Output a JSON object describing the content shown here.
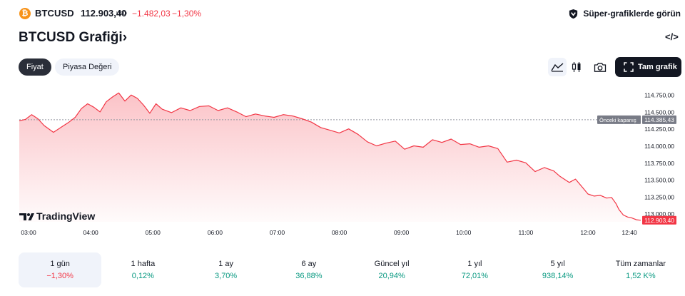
{
  "header": {
    "coin_glyph": "₿",
    "symbol": "BTCUSD",
    "price": "112.903,40",
    "currency": "USD",
    "change": "−1.482,03",
    "change_percent": "−1,30%",
    "super_charts_label": "Süper-grafiklerde görün"
  },
  "title": {
    "text": "BTCUSD Grafiği",
    "chevron": "›",
    "embed_icon": "</>"
  },
  "tabs": [
    {
      "label": "Fiyat",
      "active": true
    },
    {
      "label": "Piyasa Değeri",
      "active": false
    }
  ],
  "toolbar": {
    "line_icon": "line-chart-icon",
    "candle_icon": "candlestick-icon",
    "camera_icon": "camera-icon",
    "full_chart_label": "Tam grafik"
  },
  "chart_data": {
    "type": "area",
    "x_tick_labels": [
      "03:00",
      "04:00",
      "05:00",
      "06:00",
      "07:00",
      "08:00",
      "09:00",
      "10:00",
      "11:00",
      "12:00",
      "12:40"
    ],
    "y_tick_labels": [
      "114.750,00",
      "114.500,00",
      "114.250,00",
      "114.000,00",
      "113.750,00",
      "113.500,00",
      "113.250,00",
      "113.000,00"
    ],
    "y_ticks": [
      114750,
      114500,
      114250,
      114000,
      113750,
      113500,
      113250,
      113000
    ],
    "ylim": [
      112880,
      114920
    ],
    "x_start_hour": 2.85,
    "x_end_hour": 12.85,
    "prev_close_label": "Önceki kapanış",
    "prev_close_value": "114.385,43",
    "prev_close": 114385.43,
    "last_price_label": "112.903,40",
    "last_price": 112903.4,
    "line_color": "#f23645",
    "watermark": "TradingView",
    "series": [
      {
        "values": [
          [
            2.85,
            114370
          ],
          [
            2.95,
            114390
          ],
          [
            3.05,
            114460
          ],
          [
            3.15,
            114400
          ],
          [
            3.25,
            114300
          ],
          [
            3.4,
            114200
          ],
          [
            3.55,
            114290
          ],
          [
            3.65,
            114350
          ],
          [
            3.75,
            114420
          ],
          [
            3.85,
            114550
          ],
          [
            3.95,
            114620
          ],
          [
            4.05,
            114570
          ],
          [
            4.15,
            114500
          ],
          [
            4.25,
            114650
          ],
          [
            4.35,
            114720
          ],
          [
            4.45,
            114780
          ],
          [
            4.55,
            114660
          ],
          [
            4.65,
            114750
          ],
          [
            4.75,
            114700
          ],
          [
            4.85,
            114600
          ],
          [
            4.95,
            114480
          ],
          [
            5.05,
            114620
          ],
          [
            5.15,
            114540
          ],
          [
            5.3,
            114490
          ],
          [
            5.45,
            114560
          ],
          [
            5.6,
            114520
          ],
          [
            5.75,
            114580
          ],
          [
            5.9,
            114590
          ],
          [
            6.05,
            114520
          ],
          [
            6.2,
            114560
          ],
          [
            6.35,
            114500
          ],
          [
            6.5,
            114430
          ],
          [
            6.65,
            114470
          ],
          [
            6.8,
            114440
          ],
          [
            6.95,
            114420
          ],
          [
            7.1,
            114460
          ],
          [
            7.25,
            114440
          ],
          [
            7.4,
            114400
          ],
          [
            7.55,
            114350
          ],
          [
            7.7,
            114270
          ],
          [
            7.85,
            114230
          ],
          [
            8.0,
            114190
          ],
          [
            8.15,
            114250
          ],
          [
            8.3,
            114170
          ],
          [
            8.45,
            114060
          ],
          [
            8.6,
            114000
          ],
          [
            8.75,
            114040
          ],
          [
            8.9,
            114070
          ],
          [
            9.05,
            113950
          ],
          [
            9.2,
            114000
          ],
          [
            9.35,
            113980
          ],
          [
            9.5,
            114090
          ],
          [
            9.65,
            114050
          ],
          [
            9.8,
            114100
          ],
          [
            9.95,
            114020
          ],
          [
            10.1,
            114030
          ],
          [
            10.25,
            113980
          ],
          [
            10.4,
            114000
          ],
          [
            10.55,
            113960
          ],
          [
            10.7,
            113760
          ],
          [
            10.85,
            113790
          ],
          [
            11.0,
            113750
          ],
          [
            11.15,
            113620
          ],
          [
            11.3,
            113680
          ],
          [
            11.45,
            113630
          ],
          [
            11.55,
            113550
          ],
          [
            11.7,
            113460
          ],
          [
            11.8,
            113510
          ],
          [
            11.9,
            113400
          ],
          [
            12.0,
            113290
          ],
          [
            12.1,
            113260
          ],
          [
            12.2,
            113270
          ],
          [
            12.3,
            113230
          ],
          [
            12.38,
            113240
          ],
          [
            12.45,
            113150
          ],
          [
            12.5,
            113060
          ],
          [
            12.57,
            112980
          ],
          [
            12.64,
            112950
          ],
          [
            12.7,
            112940
          ],
          [
            12.78,
            112910
          ],
          [
            12.85,
            112903
          ]
        ]
      }
    ]
  },
  "periods": [
    {
      "label": "1 gün",
      "value": "−1,30%",
      "trend": "neg",
      "active": true
    },
    {
      "label": "1 hafta",
      "value": "0,12%",
      "trend": "pos",
      "active": false
    },
    {
      "label": "1 ay",
      "value": "3,70%",
      "trend": "pos",
      "active": false
    },
    {
      "label": "6 ay",
      "value": "36,88%",
      "trend": "pos",
      "active": false
    },
    {
      "label": "Güncel yıl",
      "value": "20,94%",
      "trend": "pos",
      "active": false
    },
    {
      "label": "1 yıl",
      "value": "72,01%",
      "trend": "pos",
      "active": false
    },
    {
      "label": "5 yıl",
      "value": "938,14%",
      "trend": "pos",
      "active": false
    },
    {
      "label": "Tüm zamanlar",
      "value": "1,52 K%",
      "trend": "pos",
      "active": false
    }
  ]
}
